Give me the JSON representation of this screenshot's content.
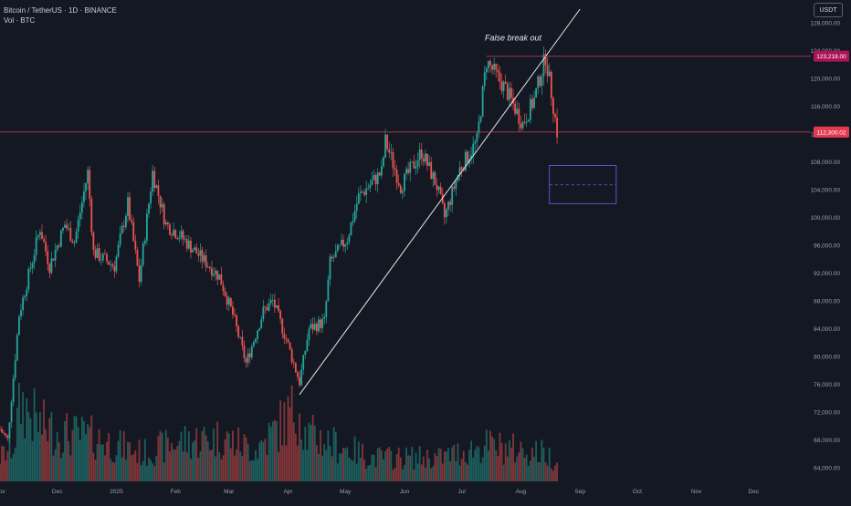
{
  "header": {
    "symbol_line": "Bitcoin / TetherUS · 1D · BINANCE",
    "volume_line": "Vol · BTC"
  },
  "unit_button": "USDT",
  "annotation": "False break out",
  "colors": {
    "background": "#141823",
    "up": "#26a69a",
    "down": "#ef5350",
    "trendline": "#e8e8e8",
    "resistance_line": "#a83a5a",
    "current_line": "#b23b54",
    "zone": "#7a5cf0",
    "badge_resistance": "#ad1457",
    "badge_current": "#e53950"
  },
  "chart_data": {
    "type": "candlestick",
    "title": "Bitcoin / TetherUS · 1D · BINANCE",
    "x_tick_labels": [
      "Nov",
      "Dec",
      "2025",
      "Feb",
      "Mar",
      "Apr",
      "May",
      "Jun",
      "Jul",
      "Aug",
      "Sep",
      "Oct",
      "Nov",
      "Dec"
    ],
    "y_tick_labels": [
      "128,000.00",
      "124,000.00",
      "120,000.00",
      "116,000.00",
      "112,000.00",
      "108,000.00",
      "104,000.00",
      "100,000.00",
      "96,000.00",
      "92,000.00",
      "88,000.00",
      "84,000.00",
      "80,000.00",
      "76,000.00",
      "72,000.00",
      "68,000.00",
      "64,000.00"
    ],
    "y_ticks": [
      128000,
      124000,
      120000,
      116000,
      112000,
      108000,
      104000,
      100000,
      96000,
      92000,
      88000,
      84000,
      80000,
      76000,
      72000,
      68000,
      64000
    ],
    "ylim": [
      62000,
      130000
    ],
    "x_start": "2024-11-01",
    "x_end": "2025-12-31",
    "last_candle_date": "2025-08-20",
    "close_path": [
      [
        "2024-11-01",
        69500
      ],
      [
        "2024-11-05",
        68000
      ],
      [
        "2024-11-11",
        86000
      ],
      [
        "2024-11-22",
        98500
      ],
      [
        "2024-11-27",
        93000
      ],
      [
        "2024-12-05",
        99000
      ],
      [
        "2024-12-10",
        96500
      ],
      [
        "2024-12-17",
        106500
      ],
      [
        "2024-12-20",
        95000
      ],
      [
        "2024-12-31",
        93000
      ],
      [
        "2025-01-07",
        102000
      ],
      [
        "2025-01-13",
        91000
      ],
      [
        "2025-01-20",
        106500
      ],
      [
        "2025-01-27",
        99000
      ],
      [
        "2025-02-03",
        97500
      ],
      [
        "2025-02-24",
        91500
      ],
      [
        "2025-03-03",
        86000
      ],
      [
        "2025-03-10",
        79000
      ],
      [
        "2025-03-19",
        86500
      ],
      [
        "2025-03-24",
        88000
      ],
      [
        "2025-03-31",
        82500
      ],
      [
        "2025-04-07",
        76300
      ],
      [
        "2025-04-12",
        84000
      ],
      [
        "2025-04-20",
        85000
      ],
      [
        "2025-04-23",
        93500
      ],
      [
        "2025-05-02",
        97000
      ],
      [
        "2025-05-08",
        103000
      ],
      [
        "2025-05-20",
        106500
      ],
      [
        "2025-05-22",
        111000
      ],
      [
        "2025-05-30",
        104500
      ],
      [
        "2025-06-10",
        109500
      ],
      [
        "2025-06-18",
        104500
      ],
      [
        "2025-06-22",
        100000
      ],
      [
        "2025-06-30",
        107000
      ],
      [
        "2025-07-09",
        111000
      ],
      [
        "2025-07-14",
        122500
      ],
      [
        "2025-07-24",
        118500
      ],
      [
        "2025-08-02",
        113500
      ],
      [
        "2025-08-08",
        117000
      ],
      [
        "2025-08-14",
        123218
      ],
      [
        "2025-08-17",
        118000
      ],
      [
        "2025-08-20",
        112300
      ]
    ],
    "volume_path": [
      [
        "2024-11-01",
        0.3
      ],
      [
        "2024-11-08",
        0.45
      ],
      [
        "2024-11-12",
        1.0
      ],
      [
        "2024-11-22",
        0.7
      ],
      [
        "2024-12-05",
        0.6
      ],
      [
        "2024-12-20",
        0.55
      ],
      [
        "2025-01-15",
        0.35
      ],
      [
        "2025-02-03",
        0.5
      ],
      [
        "2025-02-25",
        0.55
      ],
      [
        "2025-03-15",
        0.4
      ],
      [
        "2025-04-07",
        0.95
      ],
      [
        "2025-04-10",
        0.6
      ],
      [
        "2025-05-15",
        0.3
      ],
      [
        "2025-06-20",
        0.3
      ],
      [
        "2025-07-14",
        0.45
      ],
      [
        "2025-08-14",
        0.35
      ],
      [
        "2025-08-20",
        0.25
      ]
    ],
    "trendline": {
      "from": [
        "2025-04-07",
        74500
      ],
      "to": [
        "2025-09-01",
        130000
      ]
    },
    "horizontal_levels": [
      {
        "label": "123,218.00",
        "value": 123218,
        "from": "2025-07-14"
      },
      {
        "label": "112,300.02",
        "value": 112300,
        "from": "2024-11-01"
      }
    ],
    "zone": {
      "from": "2025-08-16",
      "to": "2025-09-20",
      "top": 107500,
      "bottom": 102000,
      "mid": 104700
    },
    "annotations": [
      {
        "text": "False break out",
        "date": "2025-07-28",
        "value": 125500
      }
    ],
    "grid": false
  }
}
